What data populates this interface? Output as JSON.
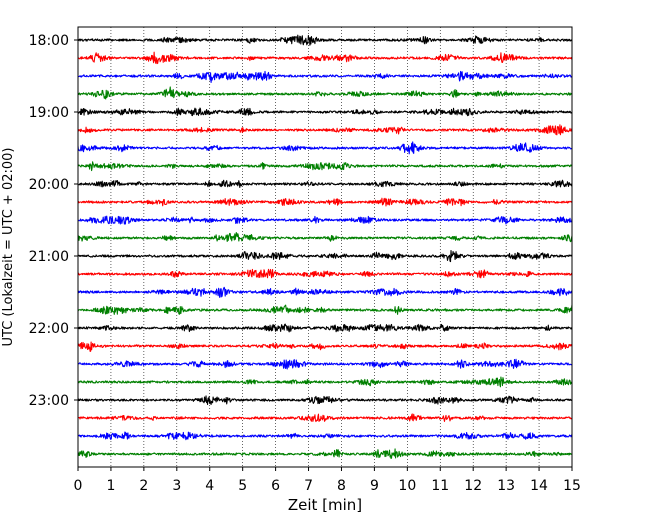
{
  "chart_data": {
    "type": "line",
    "title": "",
    "xlabel": "Zeit  [min]",
    "ylabel": "UTC (Lokalzeit = UTC + 02:00)",
    "xlim": [
      0,
      15
    ],
    "x_ticks": [
      "0",
      "1",
      "2",
      "3",
      "4",
      "5",
      "6",
      "7",
      "8",
      "9",
      "10",
      "11",
      "12",
      "13",
      "14",
      "15"
    ],
    "y_ticks": [
      "18:00",
      "19:00",
      "20:00",
      "21:00",
      "22:00",
      "23:00"
    ],
    "start_time": "18:00",
    "trace_interval_min": 15,
    "trace_count": 24,
    "trace_colors": [
      "#000000",
      "#ff0000",
      "#0000ff",
      "#008000"
    ],
    "grid_x": true,
    "grid_style": "dotted",
    "legend": "none"
  }
}
